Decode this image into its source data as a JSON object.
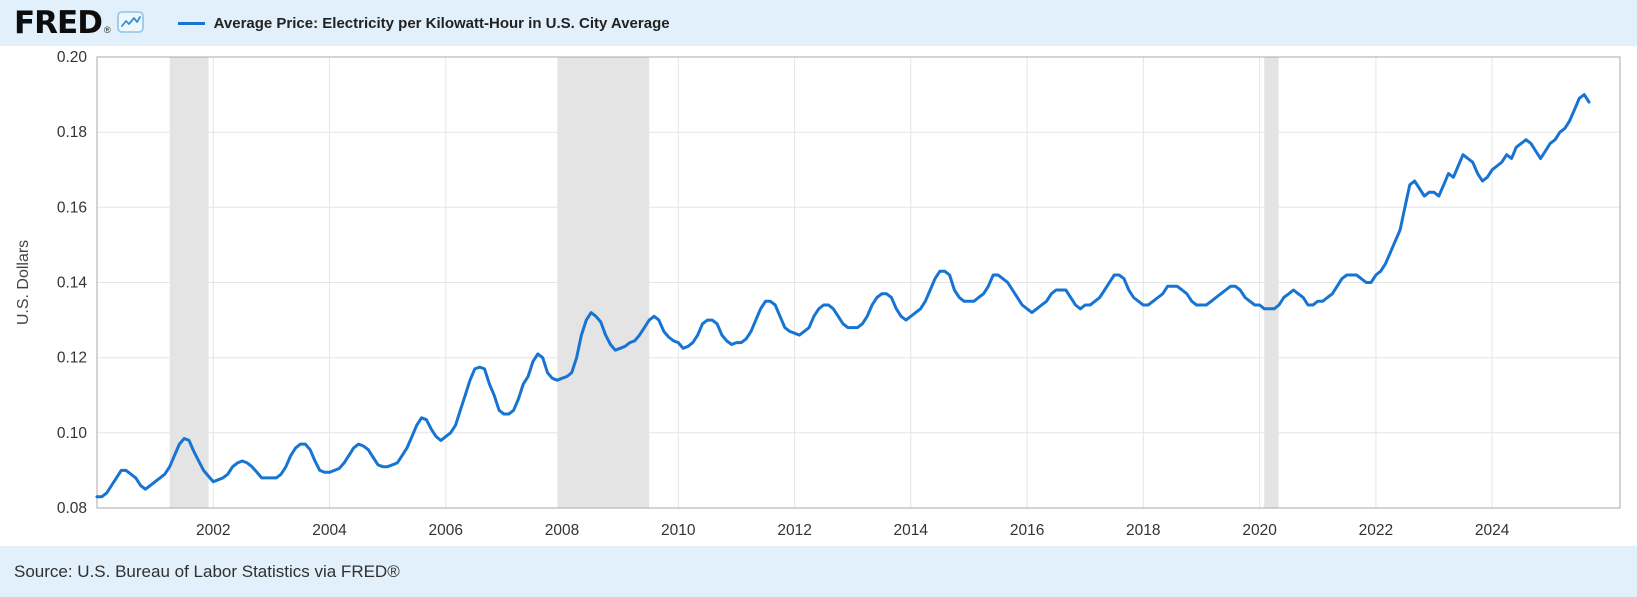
{
  "header": {
    "logo_text": "FRED",
    "registered_mark": "®",
    "legend_label": "Average Price: Electricity per Kilowatt-Hour in U.S. City Average"
  },
  "footer": {
    "source": "Source: U.S. Bureau of Labor Statistics via FRED®"
  },
  "colors": {
    "page_bg": "#e1f0fa",
    "plot_bg": "#ffffff",
    "line": "#1874d2",
    "grid": "#e5e5e5",
    "border": "#aaaaaa",
    "recession": "#e4e4e4",
    "text": "#333333"
  },
  "chart_data": {
    "type": "line",
    "title": "Average Price: Electricity per Kilowatt-Hour in U.S. City Average",
    "xlabel": "",
    "ylabel": "U.S. Dollars",
    "units": "U.S. Dollars",
    "frequency": "monthly",
    "start_year": 2000,
    "start_month": 1,
    "x_range": [
      2000,
      2026.2
    ],
    "y_range": [
      0.08,
      0.2
    ],
    "x_ticks": [
      2002,
      2004,
      2006,
      2008,
      2010,
      2012,
      2014,
      2016,
      2018,
      2020,
      2022,
      2024
    ],
    "y_ticks": [
      0.08,
      0.1,
      0.12,
      0.14,
      0.16,
      0.18,
      0.2
    ],
    "grid": true,
    "legend_position": "top-left",
    "recession_bands": [
      [
        2001.25,
        2001.92
      ],
      [
        2007.92,
        2009.5
      ],
      [
        2020.08,
        2020.33
      ]
    ],
    "values": [
      0.083,
      0.083,
      0.084,
      0.086,
      0.088,
      0.09,
      0.09,
      0.089,
      0.088,
      0.086,
      0.085,
      0.086,
      0.087,
      0.088,
      0.089,
      0.091,
      0.094,
      0.097,
      0.0985,
      0.098,
      0.095,
      0.0925,
      0.09,
      0.0885,
      0.087,
      0.0875,
      0.088,
      0.089,
      0.091,
      0.092,
      0.0925,
      0.092,
      0.091,
      0.0895,
      0.088,
      0.088,
      0.088,
      0.088,
      0.089,
      0.091,
      0.094,
      0.096,
      0.097,
      0.097,
      0.0955,
      0.0925,
      0.09,
      0.0895,
      0.0895,
      0.09,
      0.0905,
      0.092,
      0.094,
      0.096,
      0.097,
      0.0965,
      0.0955,
      0.0935,
      0.0915,
      0.091,
      0.091,
      0.0915,
      0.092,
      0.094,
      0.096,
      0.099,
      0.102,
      0.104,
      0.1035,
      0.101,
      0.099,
      0.098,
      0.099,
      0.1,
      0.102,
      0.106,
      0.11,
      0.114,
      0.117,
      0.1175,
      0.117,
      0.113,
      0.11,
      0.106,
      0.105,
      0.105,
      0.106,
      0.109,
      0.113,
      0.115,
      0.119,
      0.121,
      0.12,
      0.116,
      0.1145,
      0.114,
      0.1145,
      0.115,
      0.116,
      0.12,
      0.126,
      0.13,
      0.132,
      0.131,
      0.1295,
      0.126,
      0.1235,
      0.122,
      0.1225,
      0.123,
      0.124,
      0.1245,
      0.126,
      0.128,
      0.13,
      0.131,
      0.13,
      0.127,
      0.1255,
      0.1245,
      0.124,
      0.1225,
      0.123,
      0.124,
      0.126,
      0.129,
      0.13,
      0.13,
      0.129,
      0.126,
      0.1245,
      0.1235,
      0.124,
      0.124,
      0.125,
      0.127,
      0.13,
      0.133,
      0.135,
      0.135,
      0.134,
      0.131,
      0.128,
      0.127,
      0.1265,
      0.126,
      0.127,
      0.128,
      0.131,
      0.133,
      0.134,
      0.134,
      0.133,
      0.131,
      0.129,
      0.128,
      0.128,
      0.128,
      0.129,
      0.131,
      0.134,
      0.136,
      0.137,
      0.137,
      0.136,
      0.133,
      0.131,
      0.13,
      0.131,
      0.132,
      0.133,
      0.135,
      0.138,
      0.141,
      0.143,
      0.143,
      0.142,
      0.138,
      0.136,
      0.135,
      0.135,
      0.135,
      0.136,
      0.137,
      0.139,
      0.142,
      0.142,
      0.141,
      0.14,
      0.138,
      0.136,
      0.134,
      0.133,
      0.132,
      0.133,
      0.134,
      0.135,
      0.137,
      0.138,
      0.138,
      0.138,
      0.136,
      0.134,
      0.133,
      0.134,
      0.134,
      0.135,
      0.136,
      0.138,
      0.14,
      0.142,
      0.142,
      0.141,
      0.138,
      0.136,
      0.135,
      0.134,
      0.134,
      0.135,
      0.136,
      0.137,
      0.139,
      0.139,
      0.139,
      0.138,
      0.137,
      0.135,
      0.134,
      0.134,
      0.134,
      0.135,
      0.136,
      0.137,
      0.138,
      0.139,
      0.139,
      0.138,
      0.136,
      0.135,
      0.134,
      0.134,
      0.133,
      0.133,
      0.133,
      0.134,
      0.136,
      0.137,
      0.138,
      0.137,
      0.136,
      0.134,
      0.134,
      0.135,
      0.135,
      0.136,
      0.137,
      0.139,
      0.141,
      0.142,
      0.142,
      0.142,
      0.141,
      0.14,
      0.14,
      0.142,
      0.143,
      0.145,
      0.148,
      0.151,
      0.154,
      0.16,
      0.166,
      0.167,
      0.165,
      0.163,
      0.164,
      0.164,
      0.163,
      0.166,
      0.169,
      0.168,
      0.171,
      0.174,
      0.173,
      0.172,
      0.169,
      0.167,
      0.168,
      0.17,
      0.171,
      0.172,
      0.174,
      0.173,
      0.176,
      0.177,
      0.178,
      0.177,
      0.175,
      0.173,
      0.175,
      0.177,
      0.178,
      0.18,
      0.181,
      0.183,
      0.186,
      0.189,
      0.19,
      0.188
    ]
  }
}
